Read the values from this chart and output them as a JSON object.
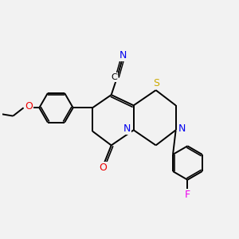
{
  "bg_color": "#f2f2f2",
  "atom_colors": {
    "C": "#000000",
    "N": "#0000ee",
    "O": "#ee0000",
    "S": "#ccaa00",
    "F": "#ee00ee"
  },
  "bond_color": "#000000",
  "bond_width": 1.4,
  "dbo": 0.08,
  "xlim": [
    0,
    10
  ],
  "ylim": [
    1.5,
    9.5
  ]
}
